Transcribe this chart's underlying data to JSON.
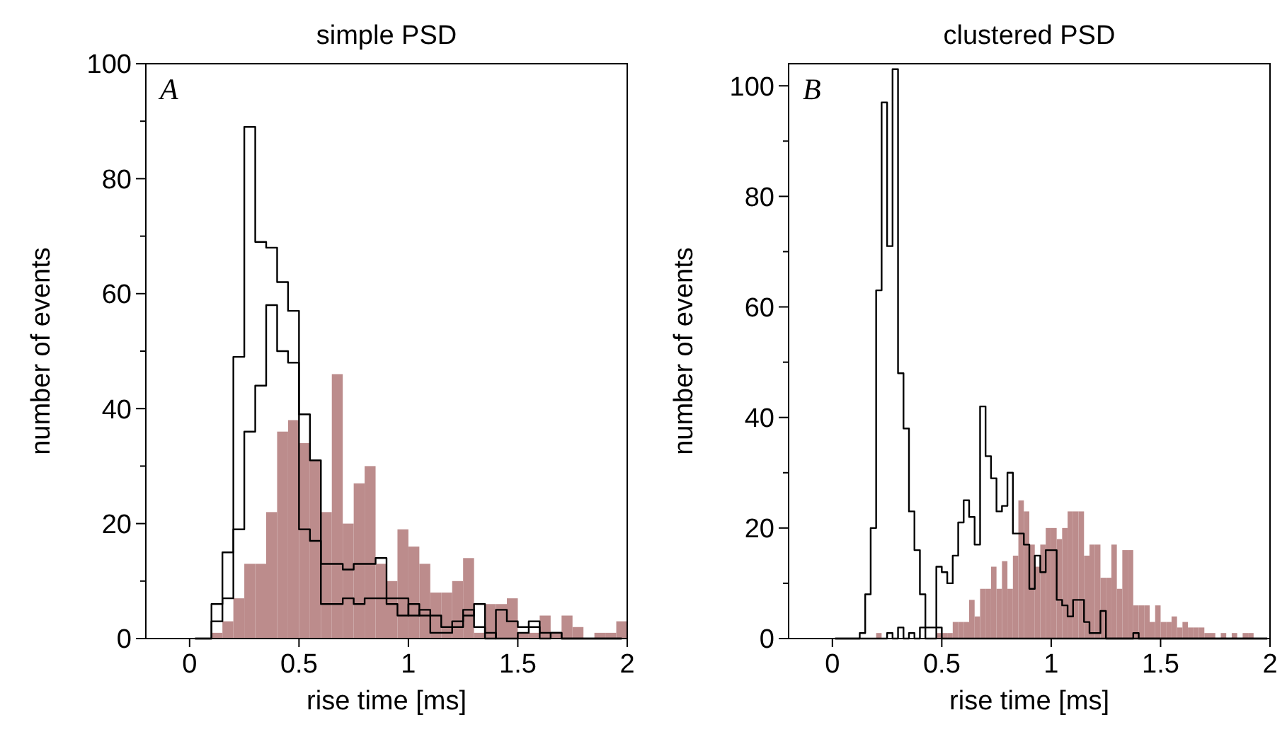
{
  "chart_data": [
    {
      "type": "histogram",
      "title": "simple PSD",
      "xlabel": "rise time [ms]",
      "ylabel": "number of events",
      "annotations": [
        "A"
      ],
      "xlim": [
        -0.2,
        2
      ],
      "ylim": [
        0,
        100
      ],
      "xticks": [
        0,
        0.5,
        1,
        1.5,
        2
      ],
      "yticks": [
        0,
        {
          "value": 10,
          "label": null
        },
        20,
        {
          "value": 30,
          "label": null
        },
        40,
        {
          "value": 50,
          "label": null
        },
        60,
        {
          "value": 70,
          "label": null
        },
        80,
        {
          "value": 90,
          "label": null
        },
        100
      ],
      "bins": [
        0,
        0.05,
        0.1,
        0.15,
        0.2,
        0.25,
        0.3,
        0.35,
        0.4,
        0.45,
        0.5,
        0.55,
        0.6,
        0.65,
        0.7,
        0.75,
        0.8,
        0.85,
        0.9,
        0.95,
        1,
        1.05,
        1.1,
        1.15,
        1.2,
        1.25,
        1.3,
        1.35,
        1.4,
        1.45,
        1.5,
        1.55,
        1.6,
        1.65,
        1.7,
        1.75,
        1.8,
        1.85,
        1.9,
        1.95,
        2
      ],
      "series": [
        {
          "type": "histogram",
          "color": "#bc8c8c",
          "values": [
            0,
            0,
            1,
            3,
            7,
            13,
            13,
            22,
            36,
            38,
            34,
            31,
            22,
            46,
            20,
            27,
            30,
            13,
            10,
            19,
            16,
            13,
            8,
            8,
            10,
            14,
            1,
            6,
            6,
            7,
            1,
            1,
            4,
            1,
            4,
            2,
            0,
            1,
            1,
            3
          ]
        },
        {
          "type": "step",
          "color": "#000000",
          "x": [
            0.025,
            0.075,
            0.125,
            0.175,
            0.225,
            0.275,
            0.325,
            0.375,
            0.425,
            0.475,
            0.525,
            0.575,
            0.625,
            0.675,
            0.725,
            0.775,
            0.825,
            0.875,
            0.925,
            0.975,
            1.025,
            1.075,
            1.125,
            1.175,
            1.225,
            1.275,
            1.325,
            1.375,
            1.425,
            1.475,
            1.525,
            1.575,
            1.625,
            1.675,
            1.725,
            1.775,
            1.825,
            1.875,
            1.925,
            1.975
          ],
          "values": [
            0,
            0,
            6,
            15,
            49,
            89,
            69,
            68,
            62,
            57,
            19,
            17,
            6,
            6,
            7,
            6,
            7,
            7,
            6,
            4,
            6,
            4,
            1,
            1,
            3,
            4,
            6,
            1,
            0,
            0,
            1,
            3,
            1,
            1,
            0,
            0,
            0,
            0,
            0,
            0
          ]
        },
        {
          "type": "step",
          "color": "#000000",
          "x": [
            0.025,
            0.075,
            0.125,
            0.175,
            0.225,
            0.275,
            0.325,
            0.375,
            0.425,
            0.475,
            0.525,
            0.575,
            0.625,
            0.675,
            0.725,
            0.775,
            0.825,
            0.875,
            0.925,
            0.975,
            1.025,
            1.075,
            1.125,
            1.175,
            1.225,
            1.275,
            1.325,
            1.375,
            1.425,
            1.475,
            1.525,
            1.575,
            1.625,
            1.675,
            1.725,
            1.775,
            1.825,
            1.875,
            1.925,
            1.975
          ],
          "values": [
            0,
            0,
            3,
            7,
            19,
            36,
            44,
            58,
            50,
            48,
            39,
            31,
            13,
            13,
            12,
            13,
            13,
            14,
            7,
            7,
            4,
            5,
            4,
            2,
            2,
            5,
            2,
            0,
            5,
            3,
            2,
            2,
            0,
            1,
            0,
            0,
            0,
            0,
            0,
            0
          ]
        }
      ]
    },
    {
      "type": "histogram",
      "title": "clustered PSD",
      "xlabel": "rise time [ms]",
      "ylabel": "number of events",
      "annotations": [
        "B"
      ],
      "xlim": [
        -0.2,
        2
      ],
      "ylim": [
        0,
        104
      ],
      "xticks": [
        0,
        0.5,
        1,
        1.5,
        2
      ],
      "yticks": [
        0,
        {
          "value": 10,
          "label": null
        },
        20,
        {
          "value": 30,
          "label": null
        },
        40,
        {
          "value": 50,
          "label": null
        },
        60,
        {
          "value": 70,
          "label": null
        },
        80,
        {
          "value": 90,
          "label": null
        },
        100
      ],
      "bins": [
        0,
        0.025,
        0.05,
        0.075,
        0.1,
        0.125,
        0.15,
        0.175,
        0.2,
        0.225,
        0.25,
        0.275,
        0.3,
        0.325,
        0.35,
        0.375,
        0.4,
        0.425,
        0.45,
        0.475,
        0.5,
        0.525,
        0.55,
        0.575,
        0.6,
        0.625,
        0.65,
        0.675,
        0.7,
        0.725,
        0.75,
        0.775,
        0.8,
        0.825,
        0.85,
        0.875,
        0.9,
        0.925,
        0.95,
        0.975,
        1,
        1.025,
        1.05,
        1.075,
        1.1,
        1.125,
        1.15,
        1.175,
        1.2,
        1.225,
        1.25,
        1.275,
        1.3,
        1.325,
        1.35,
        1.375,
        1.4,
        1.425,
        1.45,
        1.475,
        1.5,
        1.525,
        1.55,
        1.575,
        1.6,
        1.625,
        1.65,
        1.675,
        1.7,
        1.725,
        1.75,
        1.775,
        1.8,
        1.825,
        1.85,
        1.875,
        1.9,
        1.925,
        1.95,
        1.975,
        2
      ],
      "series": [
        {
          "type": "histogram",
          "color": "#bc8c8c",
          "values": [
            0,
            0,
            0,
            0,
            0,
            0,
            0,
            0,
            1,
            0,
            0,
            0,
            0,
            0,
            0,
            0,
            0,
            0,
            0,
            1,
            1,
            1,
            3,
            3,
            3,
            7,
            4,
            9,
            9,
            13,
            9,
            14,
            9,
            15,
            25,
            23,
            17,
            13,
            17,
            20,
            20,
            18,
            20,
            23,
            23,
            23,
            15,
            17,
            17,
            11,
            11,
            17,
            9,
            16,
            16,
            6,
            6,
            6,
            3,
            6,
            3,
            3,
            4,
            2,
            3,
            2,
            2,
            2,
            1,
            1,
            0,
            1,
            0,
            1,
            0,
            1,
            1,
            0,
            0,
            0
          ]
        },
        {
          "type": "step",
          "color": "#000000",
          "x": [
            0.0125,
            0.0375,
            0.0625,
            0.0875,
            0.1125,
            0.1375,
            0.1625,
            0.1875,
            0.2125,
            0.2375,
            0.2625,
            0.2875,
            0.3125,
            0.3375,
            0.3625,
            0.3875,
            0.4125,
            0.4375,
            0.4625,
            0.4875,
            0.5125,
            0.5375,
            0.5625,
            0.5875,
            0.6125,
            0.6375,
            0.6625,
            0.6875,
            0.7125,
            0.7375,
            0.7625,
            0.7875,
            0.8125,
            0.8375,
            0.8625,
            0.8875,
            0.9125,
            0.9375,
            0.9625,
            0.9875,
            1.0125,
            1.0375,
            1.0625,
            1.0875,
            1.1125,
            1.1375,
            1.1625,
            1.1875,
            1.2125,
            1.2375,
            1.2625,
            1.2875,
            1.3125,
            1.3375,
            1.3625,
            1.3875,
            1.4125,
            1.4375,
            1.4625,
            1.4875,
            1.5125,
            1.5375,
            1.5625,
            1.5875,
            1.6125,
            1.6375,
            1.6625,
            1.6875,
            1.7125,
            1.7375,
            1.7625,
            1.7875,
            1.8125,
            1.8375,
            1.8625,
            1.8875,
            1.9125,
            1.9375,
            1.9625,
            1.9875
          ],
          "values": [
            0,
            0,
            0,
            0,
            0,
            1,
            8,
            20,
            63,
            97,
            71,
            103,
            48,
            38,
            23,
            16,
            8,
            2,
            2,
            2,
            0,
            0,
            0,
            0,
            0,
            0,
            0,
            0,
            0,
            0,
            0,
            0,
            0,
            0,
            0,
            0,
            0,
            0,
            0,
            0,
            0,
            0,
            0,
            0,
            0,
            0,
            0,
            0,
            0,
            0,
            0,
            0,
            0,
            0,
            0,
            0,
            0,
            0,
            0,
            0,
            0,
            0,
            0,
            0,
            0,
            0,
            0,
            0,
            0,
            0,
            0,
            0,
            0,
            0,
            0,
            0,
            0,
            0,
            0,
            0
          ]
        },
        {
          "type": "step",
          "color": "#000000",
          "x": [
            0.0125,
            0.0375,
            0.0625,
            0.0875,
            0.1125,
            0.1375,
            0.1625,
            0.1875,
            0.2125,
            0.2375,
            0.2625,
            0.2875,
            0.3125,
            0.3375,
            0.3625,
            0.3875,
            0.4125,
            0.4375,
            0.4625,
            0.4875,
            0.5125,
            0.5375,
            0.5625,
            0.5875,
            0.6125,
            0.6375,
            0.6625,
            0.6875,
            0.7125,
            0.7375,
            0.7625,
            0.7875,
            0.8125,
            0.8375,
            0.8625,
            0.8875,
            0.9125,
            0.9375,
            0.9625,
            0.9875,
            1.0125,
            1.0375,
            1.0625,
            1.0875,
            1.1125,
            1.1375,
            1.1625,
            1.1875,
            1.2125,
            1.2375,
            1.2625,
            1.2875,
            1.3125,
            1.3375,
            1.3625,
            1.3875,
            1.4125,
            1.4375,
            1.4625,
            1.4875,
            1.5125,
            1.5375,
            1.5625,
            1.5875,
            1.6125,
            1.6375,
            1.6625,
            1.6875,
            1.7125,
            1.7375,
            1.7625,
            1.7875,
            1.8125,
            1.8375,
            1.8625,
            1.8875,
            1.9125,
            1.9375,
            1.9625,
            1.9875
          ],
          "values": [
            0,
            0,
            0,
            0,
            0,
            0,
            0,
            0,
            0,
            0,
            1,
            0,
            2,
            0,
            1,
            0,
            2,
            0,
            0,
            13,
            12,
            10,
            15,
            21,
            25,
            22,
            17,
            42,
            33,
            29,
            23,
            24,
            30,
            19,
            19,
            17,
            9,
            15,
            12,
            16,
            16,
            7,
            6,
            4,
            7,
            7,
            3,
            1,
            1,
            5,
            0,
            0,
            0,
            0,
            0,
            1,
            0,
            0,
            0,
            0,
            0,
            0,
            0,
            0,
            0,
            0,
            0,
            0,
            0,
            0,
            0,
            0,
            0,
            0,
            0,
            0,
            0,
            0,
            0,
            0
          ]
        }
      ]
    }
  ]
}
